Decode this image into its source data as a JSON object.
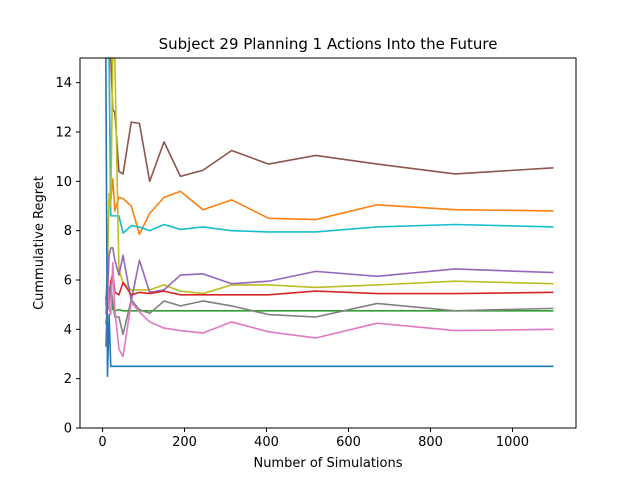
{
  "chart_data": {
    "type": "line",
    "title": "Subject 29 Planning 1 Actions Into the Future",
    "xlabel": "Number of Simulations",
    "ylabel": "Cummulative Regret",
    "xlim": [
      -55,
      1155
    ],
    "ylim": [
      0,
      15
    ],
    "xticks": [
      0,
      200,
      400,
      600,
      800,
      1000
    ],
    "yticks": [
      0,
      2,
      4,
      6,
      8,
      10,
      12,
      14
    ],
    "grid": false,
    "legend": "none",
    "series": [
      {
        "color": "#8c564b",
        "x": [
          8,
          12,
          16,
          20,
          25,
          30,
          40,
          50,
          70,
          90,
          115,
          150,
          190,
          245,
          315,
          405,
          520,
          670,
          860,
          1100
        ],
        "y": [
          15,
          15,
          15,
          15,
          12.9,
          12.8,
          10.4,
          10.3,
          12.4,
          12.35,
          10.0,
          11.6,
          10.2,
          10.45,
          11.25,
          10.7,
          11.05,
          10.7,
          10.3,
          10.55
        ]
      },
      {
        "color": "#ff7f0e",
        "x": [
          8,
          12,
          16,
          20,
          25,
          30,
          40,
          50,
          70,
          90,
          115,
          150,
          190,
          245,
          315,
          405,
          520,
          670,
          860,
          1100
        ],
        "y": [
          15,
          15,
          15,
          9.2,
          10.1,
          8.8,
          9.35,
          9.3,
          9.0,
          7.85,
          8.7,
          9.35,
          9.6,
          8.85,
          9.25,
          8.5,
          8.45,
          9.05,
          8.85,
          8.8
        ]
      },
      {
        "color": "#17becf",
        "x": [
          8,
          12,
          16,
          20,
          25,
          30,
          40,
          50,
          70,
          90,
          115,
          150,
          190,
          245,
          315,
          405,
          520,
          670,
          860,
          1100
        ],
        "y": [
          15,
          15,
          15,
          8.6,
          8.6,
          8.6,
          8.6,
          7.9,
          8.2,
          8.15,
          8.0,
          8.25,
          8.05,
          8.15,
          8.0,
          7.95,
          7.95,
          8.15,
          8.25,
          8.15
        ]
      },
      {
        "color": "#bcbd22",
        "x": [
          8,
          12,
          16,
          20,
          25,
          30,
          40,
          50,
          70,
          90,
          115,
          150,
          190,
          245,
          315,
          405,
          520,
          670,
          860,
          1100
        ],
        "y": [
          5.2,
          6.5,
          9.5,
          9.0,
          15,
          15,
          6.4,
          5.9,
          5.6,
          5.6,
          5.6,
          5.8,
          5.55,
          5.45,
          5.8,
          5.8,
          5.7,
          5.8,
          5.95,
          5.85
        ]
      },
      {
        "color": "#9467bd",
        "x": [
          8,
          12,
          16,
          20,
          25,
          30,
          40,
          50,
          70,
          90,
          115,
          150,
          190,
          245,
          315,
          405,
          520,
          670,
          860,
          1100
        ],
        "y": [
          3.3,
          5.3,
          7.0,
          7.3,
          7.3,
          6.8,
          6.2,
          7.0,
          5.15,
          6.8,
          5.5,
          5.6,
          6.2,
          6.25,
          5.85,
          5.95,
          6.35,
          6.15,
          6.45,
          6.3
        ]
      },
      {
        "color": "#d62728",
        "x": [
          8,
          12,
          16,
          20,
          25,
          30,
          40,
          50,
          70,
          90,
          115,
          150,
          190,
          245,
          315,
          405,
          520,
          670,
          860,
          1100
        ],
        "y": [
          5.2,
          5.7,
          5.4,
          5.9,
          6.3,
          5.5,
          5.4,
          5.9,
          5.4,
          5.5,
          5.45,
          5.55,
          5.4,
          5.4,
          5.4,
          5.4,
          5.55,
          5.45,
          5.45,
          5.5
        ]
      },
      {
        "color": "#2ca02c",
        "x": [
          8,
          12,
          16,
          20,
          25,
          30,
          40,
          50,
          70,
          90,
          115,
          150,
          190,
          245,
          315,
          405,
          520,
          670,
          860,
          1100
        ],
        "y": [
          5.0,
          5.9,
          5.5,
          5.7,
          4.8,
          4.75,
          4.8,
          4.75,
          4.75,
          4.75,
          4.75,
          4.75,
          4.75,
          4.75,
          4.75,
          4.75,
          4.75,
          4.75,
          4.75,
          4.75
        ]
      },
      {
        "color": "#7f7f7f",
        "x": [
          8,
          12,
          16,
          20,
          25,
          30,
          40,
          50,
          70,
          90,
          115,
          150,
          190,
          245,
          315,
          405,
          520,
          670,
          860,
          1100
        ],
        "y": [
          4.2,
          4.8,
          5.0,
          5.8,
          5.1,
          4.5,
          4.5,
          3.8,
          5.2,
          4.8,
          4.65,
          5.15,
          4.95,
          5.15,
          4.95,
          4.6,
          4.5,
          5.05,
          4.75,
          4.85
        ]
      },
      {
        "color": "#e377c2",
        "x": [
          8,
          12,
          16,
          20,
          25,
          30,
          40,
          50,
          70,
          90,
          115,
          150,
          190,
          245,
          315,
          405,
          520,
          670,
          860,
          1100
        ],
        "y": [
          4.6,
          6.2,
          4.9,
          4.6,
          6.7,
          4.8,
          3.2,
          2.9,
          5.1,
          4.7,
          4.3,
          4.05,
          3.95,
          3.85,
          4.3,
          3.9,
          3.65,
          4.25,
          3.95,
          4.0
        ]
      },
      {
        "color": "#1f77b4",
        "x": [
          8,
          12,
          16,
          20,
          25,
          30,
          40,
          50,
          70,
          90,
          115,
          150,
          190,
          245,
          315,
          405,
          520,
          670,
          860,
          1100
        ],
        "y": [
          15,
          2.1,
          4.6,
          2.5,
          2.5,
          2.5,
          2.5,
          2.5,
          2.5,
          2.5,
          2.5,
          2.5,
          2.5,
          2.5,
          2.5,
          2.5,
          2.5,
          2.5,
          2.5,
          2.5
        ]
      }
    ]
  }
}
